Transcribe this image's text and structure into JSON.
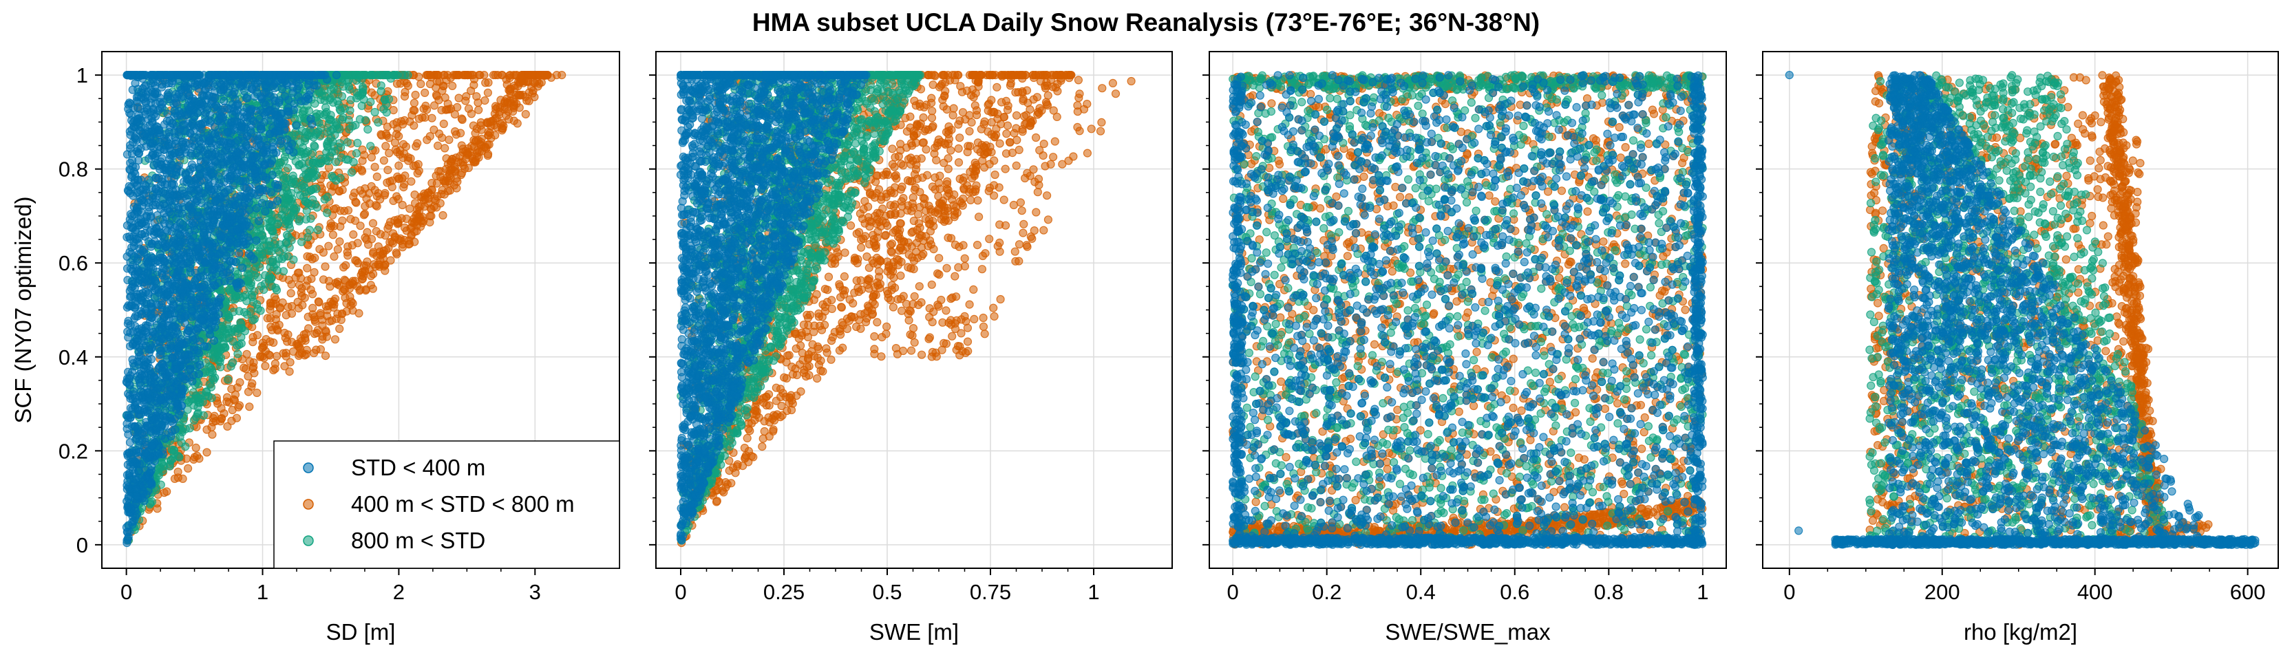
{
  "figure_title": "HMA subset UCLA Daily Snow Reanalysis (73°E-76°E; 36°N-38°N)",
  "colors": {
    "std_lt_400": "#0173b2",
    "std_400_800": "#d55e00",
    "std_gt_800": "#10a37f"
  },
  "legend": [
    {
      "label": "STD < 400 m",
      "color": "#0173b2"
    },
    {
      "label": "400 m < STD < 800 m",
      "color": "#d55e00"
    },
    {
      "label": "800 m < STD",
      "color": "#10a37f"
    }
  ],
  "chart_data": [
    {
      "type": "scatter",
      "xlabel": "SD [m]",
      "ylabel": "SCF (NY07 optimized)",
      "xlim": [
        -0.18,
        3.62
      ],
      "ylim": [
        -0.05,
        1.05
      ],
      "xticks": [
        0,
        1,
        2,
        3
      ],
      "xticklabels": [
        "0",
        "1",
        "2",
        "3"
      ],
      "yticks": [
        0,
        0.2,
        0.4,
        0.6,
        0.8,
        1
      ],
      "yticklabels": [
        "0",
        "0.2",
        "0.4",
        "0.6",
        "0.8",
        "1"
      ],
      "grid": true,
      "legend_position": "lower-right",
      "series": [
        {
          "color": "#0173b2",
          "x_range": [
            0,
            1.3
          ],
          "y_range": [
            0,
            1
          ]
        },
        {
          "color": "#d55e00",
          "x_range": [
            0,
            3.45
          ],
          "y_range": [
            0,
            1
          ]
        },
        {
          "color": "#10a37f",
          "x_range": [
            0,
            2.0
          ],
          "y_range": [
            0,
            1
          ]
        }
      ]
    },
    {
      "type": "scatter",
      "xlabel": "SWE [m]",
      "ylabel": "",
      "xlim": [
        -0.06,
        1.19
      ],
      "ylim": [
        -0.05,
        1.05
      ],
      "xticks": [
        0,
        0.25,
        0.5,
        0.75,
        1
      ],
      "xticklabels": [
        "0",
        "0.25",
        "0.5",
        "0.75",
        "1"
      ],
      "yticks": [
        0,
        0.2,
        0.4,
        0.6,
        0.8,
        1
      ],
      "grid": true,
      "series": [
        {
          "color": "#0173b2",
          "x_range": [
            0,
            0.45
          ],
          "y_range": [
            0,
            1
          ]
        },
        {
          "color": "#d55e00",
          "x_range": [
            0,
            1.12
          ],
          "y_range": [
            0,
            1
          ]
        },
        {
          "color": "#10a37f",
          "x_range": [
            0,
            0.6
          ],
          "y_range": [
            0,
            1
          ]
        }
      ]
    },
    {
      "type": "scatter",
      "xlabel": "SWE/SWE_max",
      "ylabel": "",
      "xlim": [
        -0.05,
        1.05
      ],
      "ylim": [
        -0.05,
        1.05
      ],
      "xticks": [
        0,
        0.2,
        0.4,
        0.6,
        0.8,
        1
      ],
      "xticklabels": [
        "0",
        "0.2",
        "0.4",
        "0.6",
        "0.8",
        "1"
      ],
      "yticks": [
        0,
        0.2,
        0.4,
        0.6,
        0.8,
        1
      ],
      "grid": true,
      "series": [
        {
          "color": "#0173b2",
          "x_range": [
            0,
            1
          ],
          "y_range": [
            0,
            1
          ]
        },
        {
          "color": "#d55e00",
          "x_range": [
            0,
            1
          ],
          "y_range": [
            0,
            1
          ]
        },
        {
          "color": "#10a37f",
          "x_range": [
            0,
            1
          ],
          "y_range": [
            0,
            1
          ]
        }
      ]
    },
    {
      "type": "scatter",
      "xlabel": "rho [kg/m2]",
      "ylabel": "",
      "xlim": [
        -35,
        640
      ],
      "ylim": [
        -0.05,
        1.05
      ],
      "xticks": [
        0,
        200,
        400,
        600
      ],
      "xticklabels": [
        "0",
        "200",
        "400",
        "600"
      ],
      "yticks": [
        0,
        0.2,
        0.4,
        0.6,
        0.8,
        1
      ],
      "grid": true,
      "series": [
        {
          "color": "#0173b2",
          "x_range": [
            0,
            610
          ],
          "y_range": [
            0,
            1
          ]
        },
        {
          "color": "#d55e00",
          "x_range": [
            100,
            580
          ],
          "y_range": [
            0,
            1
          ]
        },
        {
          "color": "#10a37f",
          "x_range": [
            100,
            550
          ],
          "y_range": [
            0,
            1
          ]
        }
      ]
    }
  ]
}
